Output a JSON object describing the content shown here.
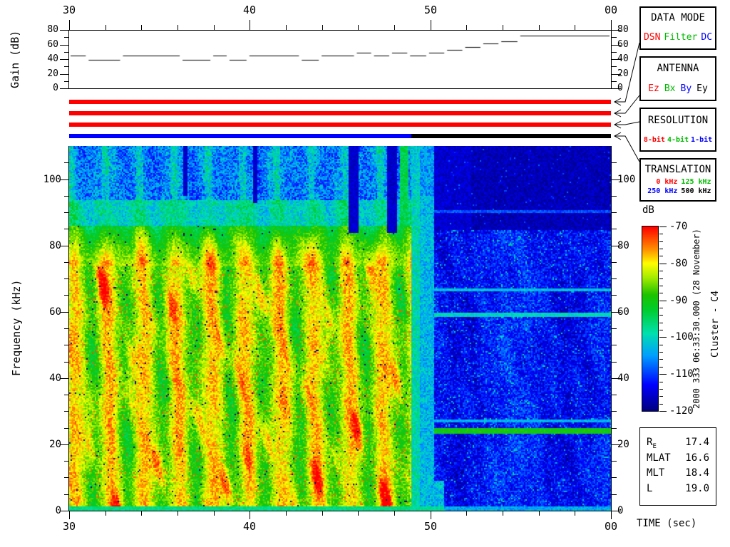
{
  "side_annotations": {
    "datetime": "2000 333 06:33:30.000 (28 November)",
    "spacecraft": "Cluster - C4"
  },
  "panels": {
    "data_mode": {
      "title": "DATA MODE",
      "values": [
        {
          "label": "DSN",
          "color": "#ff0000"
        },
        {
          "label": "Filter",
          "color": "#00bb00"
        },
        {
          "label": "DC",
          "color": "#0000ff"
        }
      ]
    },
    "antenna": {
      "title": "ANTENNA",
      "values": [
        {
          "label": "Ez",
          "color": "#ff0000"
        },
        {
          "label": "Bx",
          "color": "#00bb00"
        },
        {
          "label": "By",
          "color": "#0000ff"
        },
        {
          "label": "Ey",
          "color": "#000000"
        }
      ]
    },
    "resolution": {
      "title": "RESOLUTION",
      "values": [
        {
          "label": "8-bit",
          "color": "#ff0000"
        },
        {
          "label": "4-bit",
          "color": "#00bb00"
        },
        {
          "label": "1-bit",
          "color": "#0000ff"
        }
      ]
    },
    "translation": {
      "title": "TRANSLATION",
      "rows": [
        [
          {
            "label": "0 kHz",
            "color": "#ff0000"
          },
          {
            "label": "125 kHz",
            "color": "#00bb00"
          }
        ],
        [
          {
            "label": "250 kHz",
            "color": "#0000ff"
          },
          {
            "label": "500 kHz",
            "color": "#000000"
          }
        ]
      ]
    }
  },
  "info_panel": {
    "rows": [
      {
        "label": "R",
        "sub": "E",
        "value": "17.4"
      },
      {
        "label": "MLAT",
        "sub": "",
        "value": "16.6"
      },
      {
        "label": "MLT",
        "sub": "",
        "value": "18.4"
      },
      {
        "label": "L",
        "sub": "",
        "value": "19.0"
      }
    ]
  },
  "gain_axis": {
    "ylabel": "Gain (dB)",
    "labels": [
      "80",
      "60",
      "40",
      "20",
      "0"
    ],
    "values": [
      80,
      60,
      40,
      20,
      0
    ],
    "minor_values": [
      70,
      50,
      30,
      10
    ]
  },
  "freq_axis": {
    "ylabel": "Frequency (kHz)",
    "labels": [
      "100",
      "80",
      "60",
      "40",
      "20",
      "0"
    ],
    "values": [
      100,
      80,
      60,
      40,
      20,
      0
    ],
    "minor_step": 5
  },
  "time_axis": {
    "label": "TIME (sec)",
    "labels": [
      "30",
      "40",
      "50",
      "00"
    ],
    "values": [
      30,
      40,
      50,
      60
    ],
    "minor_step": 2
  },
  "colorbar": {
    "label": "dB",
    "tick_labels": [
      "-70",
      "-80",
      "-90",
      "-100",
      "-110",
      "-120"
    ],
    "tick_values": [
      -70,
      -80,
      -90,
      -100,
      -110,
      -120
    ],
    "minor_step": 2,
    "range": [
      -120,
      -70
    ]
  },
  "status_bars": {
    "bars": [
      {
        "name": "data-mode-bar",
        "segments": [
          {
            "start": 30,
            "end": 60,
            "color": "#ff0000"
          }
        ]
      },
      {
        "name": "antenna-bar",
        "segments": [
          {
            "start": 30,
            "end": 60,
            "color": "#ff0000"
          }
        ]
      },
      {
        "name": "resolution-bar",
        "segments": [
          {
            "start": 30,
            "end": 60,
            "color": "#ff0000"
          }
        ]
      },
      {
        "name": "translation-bar",
        "segments": [
          {
            "start": 30,
            "end": 48.95,
            "color": "#0000ff"
          },
          {
            "start": 48.95,
            "end": 60,
            "color": "#000000"
          }
        ]
      }
    ]
  },
  "chart_data": [
    {
      "type": "line",
      "title": "AGC receiver gain vs time",
      "ylabel": "Gain (dB)",
      "xlabel": "",
      "xlim": [
        30,
        60
      ],
      "ylim": [
        0,
        80
      ],
      "x_tick_labels": [
        "30",
        "40",
        "50",
        "00"
      ],
      "y_ticks": [
        0,
        20,
        40,
        60,
        80
      ],
      "series": [
        {
          "name": "gain",
          "segments": [
            [
              30.0,
              31.0,
              45
            ],
            [
              31.0,
              32.9,
              40
            ],
            [
              32.9,
              36.2,
              45
            ],
            [
              36.2,
              37.9,
              40
            ],
            [
              37.9,
              38.8,
              45
            ],
            [
              38.8,
              39.9,
              40
            ],
            [
              39.9,
              42.8,
              45
            ],
            [
              42.8,
              43.9,
              40
            ],
            [
              43.9,
              45.85,
              45
            ],
            [
              45.85,
              46.8,
              49
            ],
            [
              46.8,
              47.8,
              45
            ],
            [
              47.8,
              48.8,
              49
            ],
            [
              48.8,
              49.85,
              45
            ],
            [
              49.85,
              50.85,
              49
            ],
            [
              50.85,
              51.85,
              53
            ],
            [
              51.85,
              52.85,
              57
            ],
            [
              52.85,
              53.85,
              62
            ],
            [
              53.85,
              54.9,
              65
            ],
            [
              54.9,
              60.0,
              73
            ]
          ]
        }
      ]
    },
    {
      "type": "heatmap",
      "title": "WBD electric field spectrogram",
      "ylabel": "Frequency (kHz)",
      "xlabel": "TIME (sec)",
      "xlim": [
        30,
        60
      ],
      "ylim": [
        0,
        110
      ],
      "colorbar_label": "dB",
      "colorbar_range": [
        -120,
        -70
      ],
      "colormap_stops": [
        [
          0.0,
          0,
          0,
          130
        ],
        [
          0.14,
          0,
          0,
          255
        ],
        [
          0.3,
          0,
          160,
          255
        ],
        [
          0.42,
          0,
          225,
          175
        ],
        [
          0.55,
          0,
          205,
          45
        ],
        [
          0.63,
          30,
          195,
          0
        ],
        [
          0.72,
          160,
          235,
          0
        ],
        [
          0.8,
          255,
          255,
          0
        ],
        [
          0.88,
          255,
          140,
          0
        ],
        [
          1.0,
          255,
          0,
          0
        ]
      ],
      "regions": {
        "description": "Intense broadband turbulence (-70 to -95 dB, red/yellow with quasi-periodic green vertical striations) from t=30 s to t=48.95 s below ~86 kHz, cyan/blue speckle above 93 kHz; narrow cyan transition strip ~49-50.2 s; weak background (-105 to -120 dB, dark blue) after 50.2 s with very dark band above ~84.5 kHz and narrowband emission lines.",
        "burst_end_t": 48.95,
        "strip_end_t": 50.2,
        "strip_end_t_low": 50.8,
        "stripe_period_s": 1.9,
        "quiet_dark_fmin": 84.5,
        "green_band": {
          "t": 48.55,
          "hw": 0.22,
          "v": -94
        },
        "dark_streaks": [
          {
            "t": 45.75,
            "hw": 0.28,
            "f_min": 84
          },
          {
            "t": 47.85,
            "hw": 0.27,
            "f_min": 84
          },
          {
            "t": 40.3,
            "hw": 0.13,
            "f_min": 93
          },
          {
            "t": 36.45,
            "hw": 0.1,
            "f_min": 95
          }
        ],
        "lines": [
          {
            "f": 90.3,
            "v": -109,
            "hw": 0.45
          },
          {
            "f": 66.5,
            "v": -102,
            "hw": 0.5
          },
          {
            "f": 59.0,
            "v": -100,
            "hw": 0.55
          },
          {
            "f": 27.2,
            "v": -103,
            "hw": 0.5
          },
          {
            "f": 24.0,
            "v": -90,
            "hw": 0.75
          }
        ]
      }
    }
  ]
}
